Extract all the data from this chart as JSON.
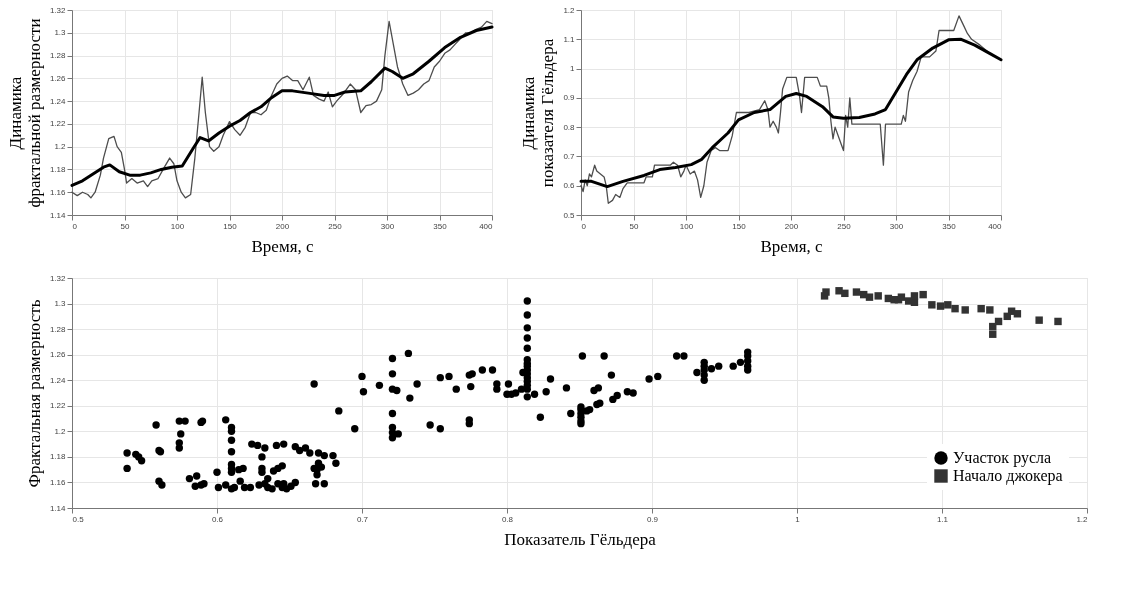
{
  "chart_data": [
    {
      "type": "line",
      "xlabel": "Время, с",
      "ylabel": "Динамика фрактальной размерности",
      "xlim": [
        0,
        400
      ],
      "xticks": [
        0,
        50,
        100,
        150,
        200,
        250,
        300,
        350,
        400
      ],
      "ylim": [
        1.14,
        1.32
      ],
      "yticks": [
        1.14,
        1.16,
        1.18,
        1.2,
        1.22,
        1.24,
        1.26,
        1.28,
        1.3,
        1.32
      ],
      "grid": true,
      "line_style": "solid",
      "series": [
        {
          "color": "#4d4d4d",
          "x": [
            0,
            5,
            10,
            15,
            18,
            22,
            27,
            30,
            35,
            40,
            43,
            47,
            50,
            52,
            57,
            62,
            68,
            72,
            76,
            82,
            88,
            93,
            97,
            100,
            104,
            108,
            113,
            117,
            121,
            124,
            127,
            131,
            135,
            140,
            144,
            150,
            155,
            160,
            165,
            170,
            175,
            180,
            185,
            190,
            195,
            200,
            205,
            210,
            215,
            220,
            226,
            230,
            235,
            240,
            244,
            248,
            252,
            258,
            265,
            270,
            275,
            280,
            285,
            290,
            295,
            298,
            302,
            306,
            310,
            315,
            320,
            325,
            330,
            335,
            340,
            345,
            350,
            355,
            360,
            365,
            370,
            375,
            380,
            385,
            390,
            395,
            400
          ],
          "values": [
            1.16,
            1.157,
            1.16,
            1.158,
            1.155,
            1.16,
            1.175,
            1.19,
            1.207,
            1.209,
            1.2,
            1.195,
            1.18,
            1.168,
            1.172,
            1.168,
            1.17,
            1.165,
            1.17,
            1.172,
            1.182,
            1.19,
            1.185,
            1.17,
            1.16,
            1.155,
            1.158,
            1.19,
            1.23,
            1.261,
            1.23,
            1.2,
            1.196,
            1.2,
            1.21,
            1.222,
            1.215,
            1.21,
            1.217,
            1.23,
            1.23,
            1.228,
            1.232,
            1.245,
            1.255,
            1.26,
            1.262,
            1.258,
            1.258,
            1.25,
            1.261,
            1.245,
            1.242,
            1.24,
            1.248,
            1.235,
            1.24,
            1.246,
            1.255,
            1.25,
            1.23,
            1.236,
            1.237,
            1.24,
            1.25,
            1.28,
            1.31,
            1.29,
            1.27,
            1.255,
            1.245,
            1.247,
            1.25,
            1.255,
            1.258,
            1.27,
            1.275,
            1.282,
            1.285,
            1.29,
            1.295,
            1.3,
            1.3,
            1.303,
            1.305,
            1.31,
            1.308
          ]
        },
        {
          "color": "#000000",
          "x": [
            0,
            10,
            20,
            30,
            36,
            45,
            55,
            65,
            75,
            85,
            95,
            105,
            115,
            122,
            130,
            140,
            150,
            160,
            170,
            180,
            190,
            200,
            210,
            225,
            240,
            250,
            260,
            275,
            285,
            298,
            305,
            315,
            325,
            340,
            355,
            370,
            385,
            400
          ],
          "values": [
            1.166,
            1.17,
            1.176,
            1.182,
            1.184,
            1.178,
            1.175,
            1.175,
            1.177,
            1.18,
            1.182,
            1.183,
            1.198,
            1.208,
            1.205,
            1.212,
            1.218,
            1.223,
            1.23,
            1.235,
            1.243,
            1.249,
            1.249,
            1.247,
            1.245,
            1.245,
            1.248,
            1.249,
            1.257,
            1.269,
            1.266,
            1.26,
            1.264,
            1.275,
            1.287,
            1.296,
            1.302,
            1.305
          ]
        }
      ]
    },
    {
      "type": "line",
      "xlabel": "Время, с",
      "ylabel": "Динамика показателя Гёльдера",
      "xlim": [
        0,
        400
      ],
      "xticks": [
        0,
        50,
        100,
        150,
        200,
        250,
        300,
        350,
        400
      ],
      "ylim": [
        0.5,
        1.2
      ],
      "yticks": [
        0.5,
        0.6,
        0.7,
        0.8,
        0.9,
        1,
        1.1,
        1.2
      ],
      "grid": true,
      "line_style": "solid",
      "series": [
        {
          "color": "#4d4d4d",
          "x": [
            0,
            2,
            4,
            6,
            8,
            10,
            13,
            15,
            22,
            24,
            26,
            30,
            33,
            37,
            40,
            44,
            55,
            60,
            62,
            68,
            70,
            85,
            88,
            92,
            95,
            98,
            100,
            104,
            108,
            111,
            114,
            117,
            120,
            124,
            128,
            132,
            140,
            144,
            148,
            160,
            170,
            175,
            178,
            180,
            183,
            186,
            188,
            190,
            192,
            196,
            205,
            208,
            210,
            213,
            225,
            228,
            234,
            236,
            238,
            240,
            242,
            245,
            248,
            250,
            252,
            254,
            256,
            258,
            275,
            285,
            288,
            290,
            305,
            307,
            309,
            312,
            316,
            320,
            324,
            332,
            338,
            341,
            355,
            360,
            364,
            368,
            372,
            380,
            390,
            400
          ],
          "values": [
            0.6,
            0.58,
            0.62,
            0.6,
            0.64,
            0.63,
            0.67,
            0.65,
            0.63,
            0.6,
            0.54,
            0.55,
            0.57,
            0.56,
            0.59,
            0.61,
            0.61,
            0.61,
            0.63,
            0.63,
            0.67,
            0.67,
            0.68,
            0.67,
            0.63,
            0.65,
            0.67,
            0.64,
            0.65,
            0.62,
            0.56,
            0.6,
            0.68,
            0.72,
            0.73,
            0.72,
            0.72,
            0.77,
            0.85,
            0.85,
            0.86,
            0.89,
            0.86,
            0.8,
            0.82,
            0.8,
            0.78,
            0.85,
            0.93,
            0.97,
            0.97,
            0.91,
            0.85,
            0.97,
            0.97,
            0.94,
            0.94,
            0.9,
            0.82,
            0.76,
            0.8,
            0.77,
            0.74,
            0.72,
            0.84,
            0.8,
            0.9,
            0.81,
            0.81,
            0.81,
            0.67,
            0.81,
            0.81,
            0.84,
            0.82,
            0.92,
            0.96,
            0.99,
            1.04,
            1.04,
            1.06,
            1.13,
            1.13,
            1.18,
            1.15,
            1.12,
            1.1,
            1.08,
            1.05,
            1.03
          ]
        },
        {
          "color": "#000000",
          "x": [
            0,
            10,
            25,
            40,
            60,
            75,
            90,
            105,
            115,
            125,
            140,
            150,
            165,
            180,
            195,
            205,
            215,
            230,
            240,
            250,
            265,
            280,
            290,
            300,
            310,
            320,
            335,
            350,
            362,
            375,
            390,
            400
          ],
          "values": [
            0.615,
            0.615,
            0.597,
            0.615,
            0.635,
            0.655,
            0.662,
            0.672,
            0.69,
            0.73,
            0.78,
            0.825,
            0.85,
            0.86,
            0.905,
            0.915,
            0.905,
            0.87,
            0.835,
            0.83,
            0.833,
            0.845,
            0.86,
            0.92,
            0.98,
            1.03,
            1.07,
            1.098,
            1.1,
            1.08,
            1.05,
            1.03
          ]
        }
      ]
    },
    {
      "type": "scatter",
      "xlabel": "Показатель Гёльдера",
      "ylabel": "Фрактальная размерность",
      "xlim": [
        0.5,
        1.2
      ],
      "xticks": [
        0.5,
        0.6,
        0.7,
        0.8,
        0.9,
        1,
        1.1,
        1.2
      ],
      "ylim": [
        1.14,
        1.32
      ],
      "yticks": [
        1.14,
        1.16,
        1.18,
        1.2,
        1.22,
        1.24,
        1.26,
        1.28,
        1.3,
        1.32
      ],
      "grid": true,
      "legend": "bottom right",
      "series": [
        {
          "name": "Участок русла",
          "color": "#000000",
          "marker": "circle",
          "x": [
            0.538,
            0.538,
            0.544,
            0.546,
            0.548,
            0.558,
            0.56,
            0.561,
            0.56,
            0.562,
            0.574,
            0.578,
            0.575,
            0.574,
            0.574,
            0.581,
            0.586,
            0.585,
            0.589,
            0.591,
            0.589,
            0.59,
            0.6,
            0.601,
            0.606,
            0.606,
            0.61,
            0.61,
            0.61,
            0.61,
            0.61,
            0.61,
            0.61,
            0.61,
            0.612,
            0.615,
            0.618,
            0.616,
            0.619,
            0.623,
            0.624,
            0.628,
            0.629,
            0.631,
            0.631,
            0.631,
            0.633,
            0.633,
            0.635,
            0.635,
            0.638,
            0.639,
            0.641,
            0.646,
            0.645,
            0.642,
            0.642,
            0.646,
            0.645,
            0.648,
            0.651,
            0.654,
            0.654,
            0.657,
            0.661,
            0.664,
            0.667,
            0.667,
            0.67,
            0.67,
            0.669,
            0.669,
            0.668,
            0.672,
            0.674,
            0.674,
            0.68,
            0.682,
            0.684,
            0.695,
            0.7,
            0.701,
            0.712,
            0.721,
            0.721,
            0.721,
            0.724,
            0.721,
            0.721,
            0.721,
            0.721,
            0.725,
            0.732,
            0.733,
            0.738,
            0.747,
            0.754,
            0.754,
            0.76,
            0.765,
            0.774,
            0.774,
            0.774,
            0.776,
            0.775,
            0.783,
            0.79,
            0.793,
            0.793,
            0.801,
            0.8,
            0.803,
            0.806,
            0.81,
            0.811,
            0.814,
            0.814,
            0.814,
            0.814,
            0.814,
            0.814,
            0.814,
            0.814,
            0.814,
            0.814,
            0.814,
            0.814,
            0.814,
            0.814,
            0.814,
            0.819,
            0.823,
            0.827,
            0.83,
            0.841,
            0.844,
            0.852,
            0.851,
            0.851,
            0.851,
            0.851,
            0.851,
            0.851,
            0.855,
            0.857,
            0.86,
            0.863,
            0.862,
            0.864,
            0.867,
            0.872,
            0.873,
            0.876,
            0.883,
            0.887,
            0.898,
            0.904,
            0.917,
            0.922,
            0.931,
            0.936,
            0.936,
            0.936,
            0.936,
            0.936,
            0.941,
            0.946,
            0.956,
            0.961,
            0.966,
            0.966,
            0.966,
            0.966,
            0.966
          ],
          "values": [
            1.183,
            1.171,
            1.182,
            1.18,
            1.177,
            1.205,
            1.185,
            1.184,
            1.161,
            1.158,
            1.208,
            1.208,
            1.198,
            1.191,
            1.187,
            1.163,
            1.165,
            1.157,
            1.158,
            1.159,
            1.207,
            1.208,
            1.168,
            1.156,
            1.209,
            1.158,
            1.203,
            1.2,
            1.193,
            1.184,
            1.174,
            1.171,
            1.168,
            1.155,
            1.156,
            1.17,
            1.171,
            1.161,
            1.156,
            1.156,
            1.19,
            1.189,
            1.158,
            1.18,
            1.171,
            1.168,
            1.187,
            1.159,
            1.163,
            1.156,
            1.155,
            1.169,
            1.189,
            1.19,
            1.173,
            1.171,
            1.159,
            1.159,
            1.156,
            1.155,
            1.157,
            1.16,
            1.188,
            1.185,
            1.187,
            1.183,
            1.237,
            1.171,
            1.183,
            1.175,
            1.17,
            1.166,
            1.159,
            1.172,
            1.159,
            1.181,
            1.181,
            1.175,
            1.216,
            1.202,
            1.243,
            1.231,
            1.236,
            1.257,
            1.245,
            1.233,
            1.232,
            1.214,
            1.203,
            1.199,
            1.195,
            1.198,
            1.261,
            1.226,
            1.237,
            1.205,
            1.202,
            1.242,
            1.243,
            1.233,
            1.209,
            1.206,
            1.244,
            1.245,
            1.235,
            1.248,
            1.248,
            1.237,
            1.233,
            1.237,
            1.229,
            1.229,
            1.23,
            1.233,
            1.246,
            1.302,
            1.291,
            1.281,
            1.273,
            1.265,
            1.256,
            1.253,
            1.251,
            1.248,
            1.245,
            1.242,
            1.239,
            1.236,
            1.233,
            1.227,
            1.229,
            1.211,
            1.231,
            1.241,
            1.234,
            1.214,
            1.259,
            1.219,
            1.217,
            1.214,
            1.211,
            1.208,
            1.206,
            1.216,
            1.217,
            1.232,
            1.234,
            1.221,
            1.222,
            1.259,
            1.244,
            1.225,
            1.228,
            1.231,
            1.23,
            1.241,
            1.243,
            1.259,
            1.259,
            1.246,
            1.254,
            1.251,
            1.248,
            1.244,
            1.24,
            1.249,
            1.251,
            1.251,
            1.254,
            1.262,
            1.259,
            1.255,
            1.251,
            1.248
          ]
        },
        {
          "name": "Начало джокера",
          "color": "#333333",
          "marker": "square",
          "x": [
            1.019,
            1.02,
            1.029,
            1.033,
            1.041,
            1.046,
            1.05,
            1.056,
            1.063,
            1.067,
            1.07,
            1.072,
            1.077,
            1.081,
            1.081,
            1.087,
            1.093,
            1.099,
            1.104,
            1.109,
            1.116,
            1.127,
            1.133,
            1.135,
            1.135,
            1.139,
            1.145,
            1.148,
            1.152,
            1.167,
            1.18
          ],
          "values": [
            1.306,
            1.309,
            1.31,
            1.308,
            1.309,
            1.307,
            1.305,
            1.306,
            1.304,
            1.303,
            1.303,
            1.305,
            1.302,
            1.301,
            1.306,
            1.307,
            1.299,
            1.298,
            1.299,
            1.296,
            1.295,
            1.296,
            1.295,
            1.282,
            1.276,
            1.286,
            1.29,
            1.294,
            1.292,
            1.287,
            1.286
          ]
        }
      ]
    }
  ]
}
